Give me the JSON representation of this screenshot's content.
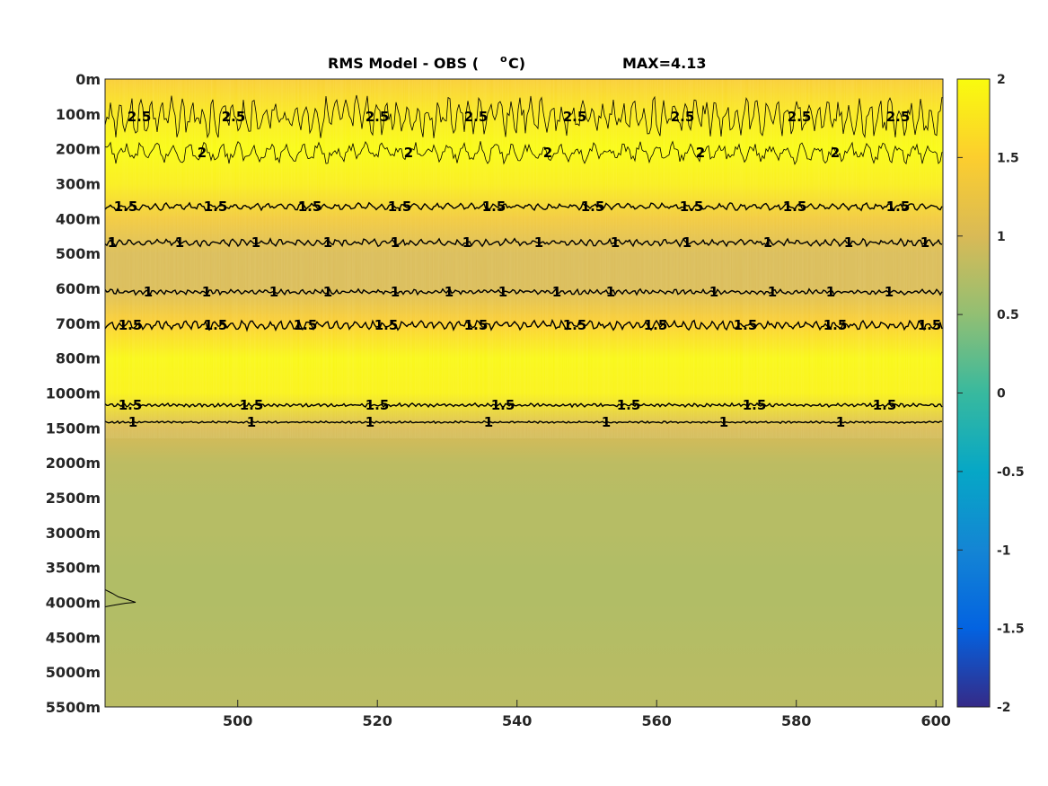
{
  "chart_data": {
    "type": "heatmap",
    "title_text": "RMS Model - OBS (",
    "title_unit_sup": "o",
    "title_unit": "C)",
    "max_label": "MAX=4.13",
    "x_ticks": [
      "500",
      "520",
      "540",
      "560",
      "580",
      "600"
    ],
    "x_tick_values": [
      500,
      520,
      540,
      560,
      580,
      600
    ],
    "xlim": [
      481,
      601
    ],
    "y_ticks": [
      "0m",
      "100m",
      "200m",
      "300m",
      "400m",
      "500m",
      "600m",
      "700m",
      "800m",
      "1000m",
      "1500m",
      "2000m",
      "2500m",
      "3000m",
      "3500m",
      "4000m",
      "4500m",
      "5000m",
      "5500m"
    ],
    "colorbar": {
      "ticks": [
        "2",
        "1.5",
        "1",
        "0.5",
        "0",
        "-0.5",
        "-1",
        "-1.5",
        "-2"
      ],
      "range": [
        -2,
        2
      ],
      "colormap": "parula"
    },
    "depth_profile": [
      {
        "depth": "0m",
        "value": 1.45
      },
      {
        "depth": "100m",
        "value": 1.8
      },
      {
        "depth": "200m",
        "value": 2.0
      },
      {
        "depth": "300m",
        "value": 1.85
      },
      {
        "depth": "400m",
        "value": 1.35
      },
      {
        "depth": "500m",
        "value": 1.0
      },
      {
        "depth": "600m",
        "value": 1.0
      },
      {
        "depth": "700m",
        "value": 1.5
      },
      {
        "depth": "800m",
        "value": 1.95
      },
      {
        "depth": "1000m",
        "value": 1.9
      },
      {
        "depth": "1500m",
        "value": 1.0
      },
      {
        "depth": "2000m",
        "value": 0.8
      },
      {
        "depth": "2500m",
        "value": 0.75
      },
      {
        "depth": "3000m",
        "value": 0.75
      },
      {
        "depth": "3500m",
        "value": 0.72
      },
      {
        "depth": "4000m",
        "value": 0.72
      },
      {
        "depth": "4500m",
        "value": 0.74
      },
      {
        "depth": "5000m",
        "value": 0.76
      },
      {
        "depth": "5500m",
        "value": 0.78
      }
    ],
    "contours": [
      {
        "level": 2.5,
        "label": "2.5"
      },
      {
        "level": 2,
        "label": "2"
      },
      {
        "level": 1.5,
        "label": "1.5"
      },
      {
        "level": 1,
        "label": "1"
      },
      {
        "level": 1,
        "label": "1"
      },
      {
        "level": 1.5,
        "label": "1.5"
      },
      {
        "level": 1.5,
        "label": "1.5"
      },
      {
        "level": 1,
        "label": "1"
      }
    ]
  }
}
